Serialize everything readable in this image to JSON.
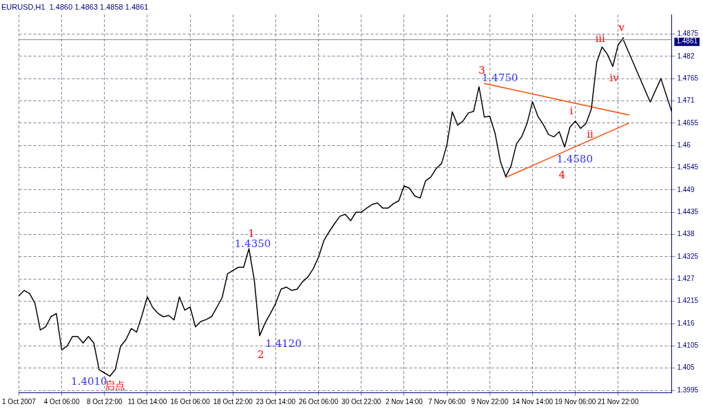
{
  "chart_data": {
    "type": "line",
    "title": "EURUSD,H1  1.4860 1.4863 1.4858 1.4861",
    "categories": [
      "1 Oct 2007",
      null,
      null,
      null,
      null,
      null,
      null,
      null,
      "4 Oct 06:00",
      null,
      null,
      null,
      null,
      null,
      null,
      null,
      "8 Oct 22:00",
      null,
      null,
      null,
      null,
      null,
      null,
      null,
      "11 Oct 14:00",
      null,
      null,
      null,
      null,
      null,
      null,
      null,
      "16 Oct 06:00",
      null,
      null,
      null,
      null,
      null,
      null,
      null,
      "18 Oct 22:00",
      null,
      null,
      null,
      null,
      null,
      null,
      null,
      "23 Oct 14:00",
      null,
      null,
      null,
      null,
      null,
      null,
      null,
      "26 Oct 06:00",
      null,
      null,
      null,
      null,
      null,
      null,
      null,
      "30 Oct 22:00",
      null,
      null,
      null,
      null,
      null,
      null,
      null,
      "2 Nov 14:00",
      null,
      null,
      null,
      null,
      null,
      null,
      null,
      "7 Nov 06:00",
      null,
      null,
      null,
      null,
      null,
      null,
      null,
      "9 Nov 22:00",
      null,
      null,
      null,
      null,
      null,
      null,
      null,
      "14 Nov 14:00",
      null,
      null,
      null,
      null,
      null,
      null,
      null,
      "19 Nov 06:00",
      null,
      null,
      null,
      null,
      null,
      null,
      null,
      "21 Nov 22:00",
      null,
      null,
      null,
      null,
      null,
      null,
      null,
      null,
      null,
      null
    ],
    "ylim": [
      1.399,
      1.4923
    ],
    "yticks": [
      1.3995,
      1.405,
      1.4105,
      1.416,
      1.4215,
      1.427,
      1.4325,
      1.438,
      1.4435,
      1.449,
      1.4545,
      1.46,
      1.4655,
      1.471,
      1.4765,
      1.482,
      1.4875
    ],
    "grid": true,
    "legend": false,
    "marker": "none",
    "line_style": "solid",
    "series": [
      {
        "color": "#000000",
        "values": [
          1.4229,
          1.4242,
          1.4234,
          1.421,
          1.4144,
          1.4152,
          1.4177,
          1.4185,
          1.4095,
          1.4104,
          1.4128,
          1.4128,
          1.4112,
          1.4128,
          1.4112,
          1.4046,
          1.4038,
          1.403,
          1.4046,
          1.4104,
          1.412,
          1.4148,
          1.4139,
          1.418,
          1.4226,
          1.42,
          1.4185,
          1.4177,
          1.418,
          1.4169,
          1.4226,
          1.4193,
          1.4201,
          1.4152,
          1.4165,
          1.417,
          1.4177,
          1.42,
          1.4225,
          1.4283,
          1.4291,
          1.4299,
          1.4299,
          1.4345,
          1.4267,
          1.413,
          1.4161,
          1.4185,
          1.421,
          1.4245,
          1.425,
          1.4242,
          1.4245,
          1.4263,
          1.4275,
          1.4295,
          1.4324,
          1.4365,
          1.4387,
          1.4407,
          1.4425,
          1.443,
          1.4414,
          1.4435,
          1.4435,
          1.4445,
          1.4454,
          1.4458,
          1.4445,
          1.4445,
          1.4456,
          1.4463,
          1.45,
          1.4494,
          1.4475,
          1.447,
          1.4512,
          1.4522,
          1.4543,
          1.4555,
          1.4601,
          1.4683,
          1.465,
          1.466,
          1.468,
          1.4684,
          1.4745,
          1.467,
          1.4672,
          1.463,
          1.456,
          1.4523,
          1.455,
          1.4604,
          1.4622,
          1.4655,
          1.4708,
          1.4672,
          1.4652,
          1.4627,
          1.4621,
          1.4634,
          1.4596,
          1.4645,
          1.466,
          1.4642,
          1.4654,
          1.469,
          1.4805,
          1.4843,
          1.4825,
          1.4795,
          1.4848,
          1.4866,
          null,
          null,
          null,
          null,
          null,
          null,
          null,
          null,
          null
        ]
      },
      {
        "color": "#000000",
        "values": [
          null,
          null,
          null,
          null,
          null,
          null,
          null,
          null,
          null,
          null,
          null,
          null,
          null,
          null,
          null,
          null,
          null,
          null,
          null,
          null,
          null,
          null,
          null,
          null,
          null,
          null,
          null,
          null,
          null,
          null,
          null,
          null,
          null,
          null,
          null,
          null,
          null,
          null,
          null,
          null,
          null,
          null,
          null,
          null,
          null,
          null,
          null,
          null,
          null,
          null,
          null,
          null,
          null,
          null,
          null,
          null,
          null,
          null,
          null,
          null,
          null,
          null,
          null,
          null,
          null,
          null,
          null,
          null,
          null,
          null,
          null,
          null,
          null,
          null,
          null,
          null,
          null,
          null,
          null,
          null,
          null,
          null,
          null,
          null,
          null,
          null,
          null,
          null,
          null,
          null,
          null,
          null,
          null,
          null,
          null,
          null,
          null,
          null,
          null,
          null,
          null,
          null,
          null,
          null,
          null,
          null,
          null,
          null,
          null,
          null,
          null,
          null,
          null,
          1.486,
          null,
          null,
          null,
          null,
          1.4707,
          null,
          1.4765,
          null,
          1.4684
        ]
      },
      {
        "color": "#ff4500",
        "values": [
          null,
          null,
          null,
          null,
          null,
          null,
          null,
          null,
          null,
          null,
          null,
          null,
          null,
          null,
          null,
          null,
          null,
          null,
          null,
          null,
          null,
          null,
          null,
          null,
          null,
          null,
          null,
          null,
          null,
          null,
          null,
          null,
          null,
          null,
          null,
          null,
          null,
          null,
          null,
          null,
          null,
          null,
          null,
          null,
          null,
          null,
          null,
          null,
          null,
          null,
          null,
          null,
          null,
          null,
          null,
          null,
          null,
          null,
          null,
          null,
          null,
          null,
          null,
          null,
          null,
          null,
          null,
          null,
          null,
          null,
          null,
          null,
          null,
          null,
          null,
          null,
          null,
          null,
          null,
          null,
          null,
          null,
          null,
          null,
          null,
          null,
          null,
          1.4753,
          null,
          null,
          null,
          null,
          null,
          null,
          null,
          null,
          null,
          null,
          null,
          null,
          null,
          null,
          null,
          null,
          null,
          null,
          null,
          null,
          null,
          null,
          null,
          null,
          null,
          null,
          1.4675,
          null,
          null,
          null,
          null,
          null,
          null,
          null,
          null
        ]
      },
      {
        "color": "#ff4500",
        "values": [
          null,
          null,
          null,
          null,
          null,
          null,
          null,
          null,
          null,
          null,
          null,
          null,
          null,
          null,
          null,
          null,
          null,
          null,
          null,
          null,
          null,
          null,
          null,
          null,
          null,
          null,
          null,
          null,
          null,
          null,
          null,
          null,
          null,
          null,
          null,
          null,
          null,
          null,
          null,
          null,
          null,
          null,
          null,
          null,
          null,
          null,
          null,
          null,
          null,
          null,
          null,
          null,
          null,
          null,
          null,
          null,
          null,
          null,
          null,
          null,
          null,
          null,
          null,
          null,
          null,
          null,
          null,
          null,
          null,
          null,
          null,
          null,
          null,
          null,
          null,
          null,
          null,
          null,
          null,
          null,
          null,
          null,
          null,
          null,
          null,
          null,
          null,
          null,
          null,
          null,
          null,
          1.4521,
          null,
          null,
          null,
          null,
          null,
          null,
          null,
          null,
          null,
          null,
          null,
          null,
          null,
          null,
          null,
          null,
          null,
          null,
          null,
          null,
          null,
          null,
          1.4655,
          null,
          null,
          null,
          null,
          null,
          null,
          null,
          null
        ]
      }
    ],
    "ref_lines": [
      {
        "axis": "y",
        "value": 1.4861,
        "label": "1.4861",
        "color": "#808080"
      }
    ],
    "annotations": [
      "1",
      "1.4350",
      "1.4120",
      "2",
      "1.4010",
      "启点",
      "3",
      "1.4750",
      "1.4580",
      "4",
      "i",
      "ii",
      "iii",
      "iv",
      "v"
    ]
  }
}
